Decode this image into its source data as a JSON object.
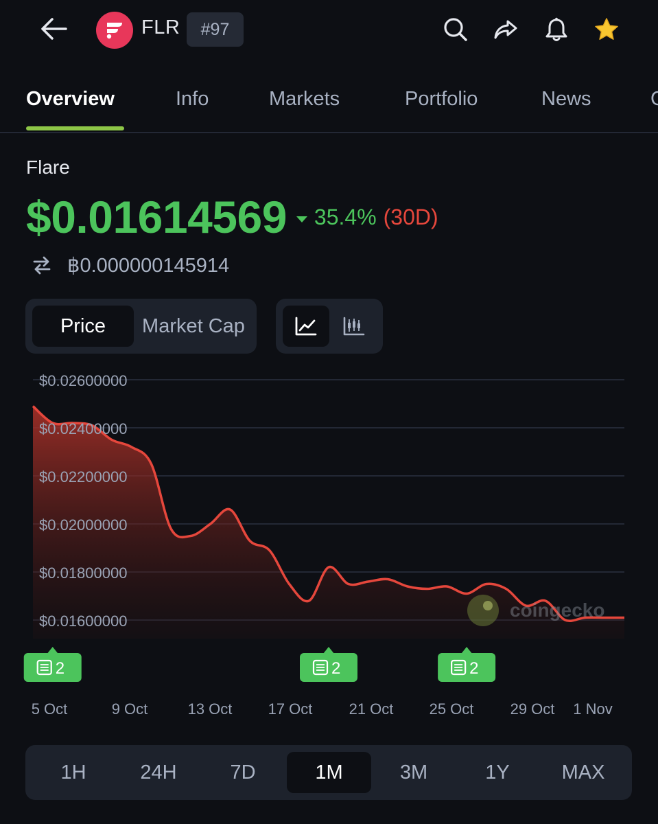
{
  "header": {
    "coin_symbol": "FLR",
    "rank": "#97"
  },
  "tabs": [
    {
      "label": "Overview",
      "active": true
    },
    {
      "label": "Info",
      "active": false
    },
    {
      "label": "Markets",
      "active": false
    },
    {
      "label": "Portfolio",
      "active": false
    },
    {
      "label": "News",
      "active": false
    },
    {
      "label": "C",
      "active": false
    }
  ],
  "coin": {
    "name": "Flare",
    "price": "$0.01614569",
    "change_pct": "35.4%",
    "change_period": "(30D)",
    "btc_price": "฿0.000000145914"
  },
  "toggles": {
    "price_label": "Price",
    "market_cap_label": "Market Cap"
  },
  "range": {
    "options": [
      "1H",
      "24H",
      "7D",
      "1M",
      "3M",
      "1Y",
      "MAX"
    ],
    "selected": "1M"
  },
  "watermark": "coingecko",
  "colors": {
    "up": "#4cc45c",
    "down": "#e5473c",
    "accent": "#8dc647",
    "badge": "#4cc45c"
  },
  "icons": [
    "arrow-left-icon",
    "flare-logo-icon",
    "search-icon",
    "share-icon",
    "bell-icon",
    "star-icon",
    "swap-icon",
    "line-chart-icon",
    "candlestick-icon",
    "news-icon"
  ],
  "chart_data": {
    "type": "area",
    "y_tick_labels": [
      "$0.02600000",
      "$0.02400000",
      "$0.02200000",
      "$0.02000000",
      "$0.01800000",
      "$0.01600000"
    ],
    "y_ticks": [
      0.026,
      0.024,
      0.022,
      0.02,
      0.018,
      0.016
    ],
    "ylim": [
      0.0155,
      0.0265
    ],
    "x_tick_labels": [
      "5 Oct",
      "9 Oct",
      "13 Oct",
      "17 Oct",
      "21 Oct",
      "25 Oct",
      "29 Oct",
      "1 Nov"
    ],
    "xlim": [
      "2024-10-04",
      "2024-11-03"
    ],
    "series": [
      {
        "x": [
          "2024-10-04",
          "2024-10-05",
          "2024-10-06",
          "2024-10-07",
          "2024-10-08",
          "2024-10-09",
          "2024-10-10",
          "2024-10-11",
          "2024-10-12",
          "2024-10-13",
          "2024-10-14",
          "2024-10-15",
          "2024-10-16",
          "2024-10-17",
          "2024-10-18",
          "2024-10-19",
          "2024-10-20",
          "2024-10-21",
          "2024-10-22",
          "2024-10-23",
          "2024-10-24",
          "2024-10-25",
          "2024-10-26",
          "2024-10-27",
          "2024-10-28",
          "2024-10-29",
          "2024-10-30",
          "2024-10-31",
          "2024-11-01",
          "2024-11-02",
          "2024-11-03"
        ],
        "values": [
          0.0249,
          0.0242,
          0.0242,
          0.0241,
          0.0235,
          0.0232,
          0.0225,
          0.0198,
          0.0195,
          0.02,
          0.0206,
          0.0193,
          0.0189,
          0.0175,
          0.0168,
          0.0182,
          0.0175,
          0.0176,
          0.0177,
          0.0174,
          0.0173,
          0.0174,
          0.0171,
          0.0175,
          0.0173,
          0.0166,
          0.0168,
          0.016,
          0.0161,
          0.0161,
          0.0161
        ]
      }
    ],
    "news_markers": [
      {
        "date": "2024-10-05",
        "count": "2"
      },
      {
        "date": "2024-10-19",
        "count": "2"
      },
      {
        "date": "2024-10-26",
        "count": "2"
      }
    ],
    "grid": true
  }
}
